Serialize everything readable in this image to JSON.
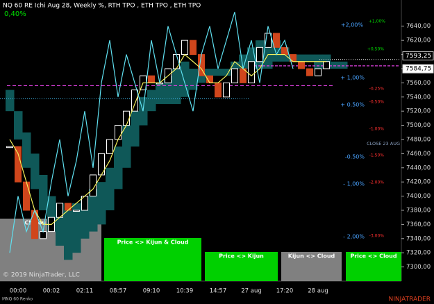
{
  "chart_data": {
    "type": "renko",
    "title": "NQ 60 RE Ichi Aug 28, Weekly %, RTH TPO , ETH TPO , ETH TPO",
    "subtitle": "0,40%",
    "footer": "© 2019 NinjaTrader, LLC",
    "instrument": "MNQ 60 Renko",
    "brand": "NINJATRADER",
    "categories": [
      null,
      "00:00",
      null,
      null,
      null,
      "00:02",
      null,
      null,
      null,
      "02:11",
      null,
      null,
      null,
      "08:57",
      null,
      null,
      null,
      "09:10",
      null,
      null,
      null,
      "10:39",
      null,
      null,
      null,
      "14:57",
      null,
      null,
      null,
      "27 aug",
      null,
      null,
      null,
      "17:20",
      null,
      null,
      null,
      "28 aug",
      null,
      null,
      null
    ],
    "series": [
      {
        "name": "Price",
        "color": "#ffffff",
        "down_color": "#d0461c",
        "values": [
          7470,
          7420,
          7380,
          7340,
          7350,
          7370,
          7390,
          7380,
          7380,
          7400,
          7430,
          7460,
          7480,
          7500,
          7520,
          7550,
          7570,
          7560,
          7560,
          7580,
          7600,
          7620,
          7600,
          7570,
          7560,
          7540,
          7560,
          7580,
          7560,
          7590,
          7610,
          7630,
          7610,
          7600,
          7590,
          7580,
          7570,
          7580,
          7590,
          null,
          null
        ]
      },
      {
        "name": "Kijun",
        "color": "#f5f05a",
        "values": [
          7480,
          7460,
          7420,
          7380,
          7360,
          7360,
          7370,
          7380,
          7390,
          7400,
          7410,
          7430,
          7450,
          7480,
          7500,
          7530,
          7560,
          7560,
          7560,
          7570,
          7580,
          7600,
          7590,
          7580,
          7560,
          7560,
          7570,
          7590,
          7580,
          7570,
          7580,
          7600,
          7600,
          7600,
          7590,
          7590,
          7590,
          7590,
          7590,
          null,
          null
        ]
      },
      {
        "name": "Chikou",
        "color": "#5fe0f0",
        "values": [
          7320,
          7400,
          7350,
          7380,
          7350,
          7420,
          7480,
          7400,
          7450,
          7520,
          7440,
          7560,
          7620,
          7540,
          7600,
          7560,
          7520,
          7620,
          7560,
          7640,
          7600,
          7560,
          7520,
          7600,
          7640,
          7580,
          7620,
          7660,
          7580,
          7620,
          7560,
          7640,
          7600,
          7620,
          7580,
          null,
          null,
          null,
          null,
          null,
          null
        ]
      }
    ],
    "cloud": {
      "color": "#0f5858",
      "top": [
        7550,
        7520,
        7490,
        7460,
        7430,
        7400,
        7390,
        7380,
        7390,
        7400,
        7410,
        7420,
        7440,
        7470,
        7500,
        7520,
        7540,
        7550,
        7560,
        7570,
        7580,
        7590,
        7580,
        7580,
        7580,
        7580,
        7580,
        7590,
        7600,
        7610,
        7620,
        7620,
        7620,
        7610,
        7600,
        7600,
        7600,
        7600,
        7600,
        7590,
        7590
      ],
      "bottom": [
        7520,
        7480,
        7440,
        7410,
        7380,
        7350,
        7330,
        7310,
        7320,
        7340,
        7350,
        7360,
        7380,
        7410,
        7440,
        7470,
        7500,
        7520,
        7530,
        7530,
        7530,
        7540,
        7550,
        7560,
        7570,
        7570,
        7570,
        7580,
        7580,
        7580,
        7580,
        7580,
        7590,
        7590,
        7590,
        7590,
        7590,
        7580,
        7580,
        7580,
        7580
      ]
    },
    "levels": [
      {
        "value": 7556,
        "color": "#e040e0"
      },
      {
        "value": 7538,
        "color": "#3aa8d8"
      },
      {
        "value": 7593,
        "color": "#cccccc"
      },
      {
        "value": 7584,
        "color": "#e040e0"
      }
    ],
    "last_prices": {
      "values": [
        7593.25,
        7584.75
      ],
      "value_labels": [
        "7593,25",
        "7584,75"
      ]
    },
    "ylim": [
      7280,
      7677
    ],
    "yticks": [
      {
        "value": 7300,
        "label": "7300,00"
      },
      {
        "value": 7320,
        "label": "7320,00"
      },
      {
        "value": 7340,
        "label": "7340,00"
      },
      {
        "value": 7360,
        "label": "7360,00"
      },
      {
        "value": 7380,
        "label": "7380,00"
      },
      {
        "value": 7400,
        "label": "7400,00"
      },
      {
        "value": 7420,
        "label": "7420,00"
      },
      {
        "value": 7440,
        "label": "7440,00"
      },
      {
        "value": 7460,
        "label": "7460,00"
      },
      {
        "value": 7480,
        "label": "7480,00"
      },
      {
        "value": 7500,
        "label": "7500,00"
      },
      {
        "value": 7520,
        "label": "7520,00"
      },
      {
        "value": 7540,
        "label": "7540,00"
      },
      {
        "value": 7560,
        "label": "7560,00"
      },
      {
        "value": 7580,
        "label": "7580,00"
      },
      {
        "value": 7600,
        "label": "7600,00"
      },
      {
        "value": 7620,
        "label": "7620,00"
      },
      {
        "value": 7640,
        "label": "7640,00"
      }
    ],
    "annotations": [
      {
        "text": "+2,00%",
        "color": "#4aa3ff"
      },
      {
        "text": "+1,00%",
        "color": "#00e000"
      },
      {
        "text": "+0,50%",
        "color": "#00e000"
      },
      {
        "text": "+ 1,00%",
        "color": "#4aa3ff"
      },
      {
        "text": "-0,25%",
        "color": "#ff3030"
      },
      {
        "text": "-0,50%",
        "color": "#ff3030"
      },
      {
        "text": "+ 0.50%",
        "color": "#4aa3ff"
      },
      {
        "text": "-1,00%",
        "color": "#ff3030"
      },
      {
        "text": "CLOSE 23 AUG",
        "color": "#8aa0c0"
      },
      {
        "text": "-1,50%",
        "color": "#ff3030"
      },
      {
        "text": "-0.50%",
        "color": "#4aa3ff"
      },
      {
        "text": "-2,00%",
        "color": "#ff3030"
      },
      {
        "text": "- 1,00%",
        "color": "#4aa3ff"
      },
      {
        "text": "- 2,00%",
        "color": "#4aa3ff"
      },
      {
        "text": "-3,00%",
        "color": "#ff3030"
      }
    ],
    "signals": [
      {
        "text": "Chikou <> Cloud",
        "color": "#808080"
      },
      {
        "text": "Price <> Kijun & Cloud",
        "color": "#00d000"
      },
      {
        "text": "Price <> Kijun",
        "color": "#00d000"
      },
      {
        "text": "Kijun <> Cloud",
        "color": "#808080"
      },
      {
        "text": "Price <> Cloud",
        "color": "#00d000"
      }
    ]
  }
}
